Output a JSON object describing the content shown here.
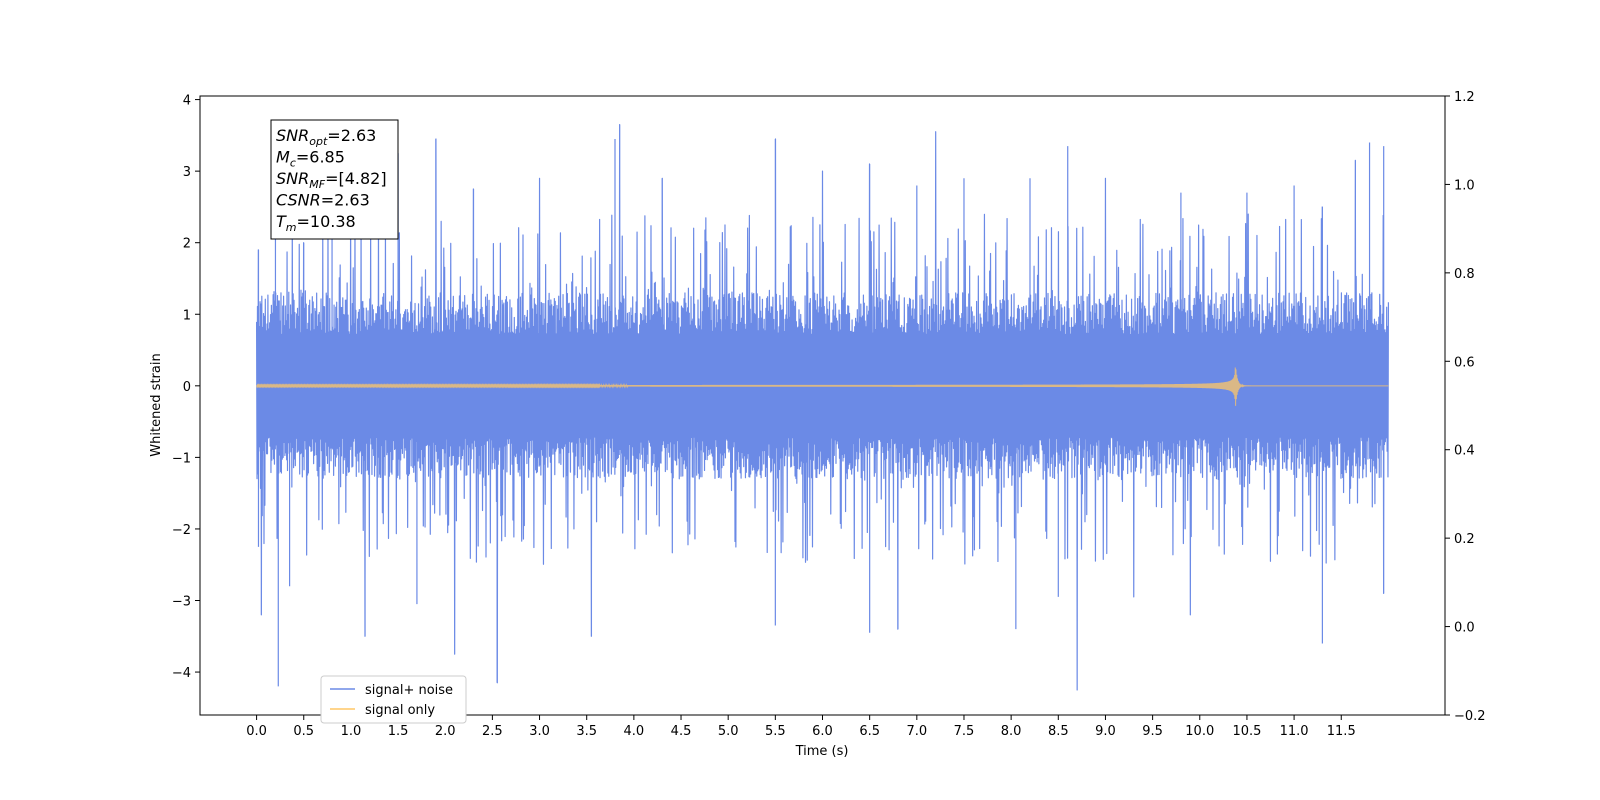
{
  "chart_data": {
    "type": "line",
    "title": "",
    "xlabel": "Time (s)",
    "ylabel": "Whitened strain",
    "xlim": [
      -0.6,
      12.6
    ],
    "ylim": [
      -4.6,
      4.05
    ],
    "y2lim": [
      -0.2,
      1.2
    ],
    "x_ticks": [
      0.0,
      0.5,
      1.0,
      1.5,
      2.0,
      2.5,
      3.0,
      3.5,
      4.0,
      4.5,
      5.0,
      5.5,
      6.0,
      6.5,
      7.0,
      7.5,
      8.0,
      8.5,
      9.0,
      9.5,
      10.0,
      10.5,
      11.0,
      11.5
    ],
    "x_tick_labels": [
      "0.0",
      "0.5",
      "1.0",
      "1.5",
      "2.0",
      "2.5",
      "3.0",
      "3.5",
      "4.0",
      "4.5",
      "5.0",
      "5.5",
      "6.0",
      "6.5",
      "7.0",
      "7.5",
      "8.0",
      "8.5",
      "9.0",
      "9.5",
      "10.0",
      "10.5",
      "11.0",
      "11.5"
    ],
    "y_ticks": [
      -4,
      -3,
      -2,
      -1,
      0,
      1,
      2,
      3,
      4
    ],
    "y_tick_labels": [
      "−4",
      "−3",
      "−2",
      "−1",
      "0",
      "1",
      "2",
      "3",
      "4"
    ],
    "y2_ticks": [
      -0.2,
      0.0,
      0.2,
      0.4,
      0.6,
      0.8,
      1.0,
      1.2
    ],
    "y2_tick_labels": [
      "−0.2",
      "0.0",
      "0.2",
      "0.4",
      "0.6",
      "0.8",
      "1.0",
      "1.2"
    ],
    "grid": false,
    "legend_position": "lower-left",
    "series": [
      {
        "name": "signal+ noise",
        "color": "#6b8ae6",
        "x_range": [
          0.0,
          12.0
        ],
        "noise_band": [
          -1.3,
          1.3
        ],
        "peaks_up": [
          [
            0.02,
            1.9
          ],
          [
            0.2,
            2.3
          ],
          [
            0.5,
            2.0
          ],
          [
            0.8,
            2.9
          ],
          [
            1.5,
            3.25
          ],
          [
            1.9,
            3.45
          ],
          [
            2.3,
            2.75
          ],
          [
            3.0,
            2.9
          ],
          [
            3.8,
            3.45
          ],
          [
            3.85,
            3.65
          ],
          [
            4.3,
            2.9
          ],
          [
            5.5,
            3.45
          ],
          [
            6.0,
            3.0
          ],
          [
            6.5,
            3.1
          ],
          [
            7.0,
            2.8
          ],
          [
            7.2,
            3.55
          ],
          [
            7.5,
            2.9
          ],
          [
            8.2,
            2.9
          ],
          [
            8.6,
            3.35
          ],
          [
            9.0,
            2.9
          ],
          [
            9.8,
            2.7
          ],
          [
            10.5,
            2.7
          ],
          [
            11.0,
            2.8
          ],
          [
            11.3,
            2.5
          ],
          [
            11.65,
            3.15
          ],
          [
            11.8,
            3.4
          ],
          [
            11.95,
            3.35
          ]
        ],
        "peaks_down": [
          [
            0.02,
            -2.25
          ],
          [
            0.05,
            -3.2
          ],
          [
            0.23,
            -4.2
          ],
          [
            0.35,
            -2.8
          ],
          [
            1.15,
            -3.5
          ],
          [
            1.7,
            -3.05
          ],
          [
            2.1,
            -3.75
          ],
          [
            2.55,
            -4.15
          ],
          [
            3.55,
            -3.5
          ],
          [
            5.5,
            -3.35
          ],
          [
            6.5,
            -3.45
          ],
          [
            6.8,
            -3.4
          ],
          [
            8.5,
            -2.95
          ],
          [
            8.7,
            -4.25
          ],
          [
            8.05,
            -3.4
          ],
          [
            9.3,
            -2.95
          ],
          [
            9.9,
            -3.2
          ],
          [
            11.3,
            -3.6
          ],
          [
            11.95,
            -2.9
          ]
        ]
      },
      {
        "name": "signal only",
        "color": "#ffc766",
        "x_range": [
          0.0,
          12.0
        ],
        "merger_time": 10.38,
        "peak_amplitude": 0.28
      }
    ]
  },
  "info_box": {
    "lines": [
      {
        "main": "SNR",
        "sub": "opt",
        "rest": "=2.63"
      },
      {
        "main": "M",
        "sub": "c",
        "rest": "=6.85"
      },
      {
        "main": "SNR",
        "sub": "MF",
        "rest": "=[4.82]"
      },
      {
        "main": "CSNR",
        "sub": "",
        "rest": "=2.63"
      },
      {
        "main": "T",
        "sub": "m",
        "rest": "=10.38"
      }
    ]
  }
}
